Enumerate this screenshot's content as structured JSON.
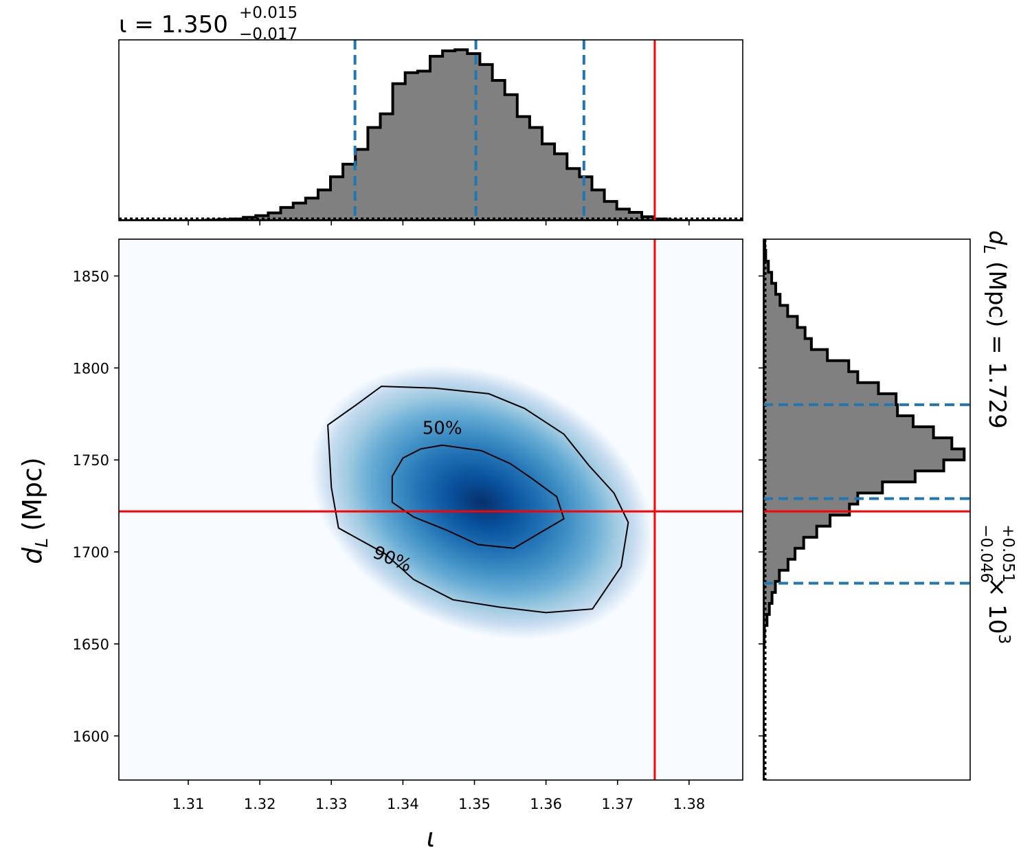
{
  "chart_data": [
    {
      "type": "heatmap",
      "panel": "joint",
      "xlabel": "ι",
      "ylabel_var": "d",
      "ylabel_sub": "L",
      "ylabel_unit": "(Mpc)",
      "xlim": [
        1.3003,
        1.3875
      ],
      "ylim": [
        1576,
        1870
      ],
      "xticks": [
        1.31,
        1.32,
        1.33,
        1.34,
        1.35,
        1.36,
        1.37,
        1.38
      ],
      "xtick_labels": [
        "1.31",
        "1.32",
        "1.33",
        "1.34",
        "1.35",
        "1.36",
        "1.37",
        "1.38"
      ],
      "yticks": [
        1600,
        1650,
        1700,
        1750,
        1800,
        1850
      ],
      "ytick_labels": [
        "1600",
        "1650",
        "1700",
        "1750",
        "1800",
        "1850"
      ],
      "colormap": "Blues",
      "density_peak": {
        "x": 1.351,
        "y": 1727
      },
      "contours": [
        {
          "label": "50%",
          "label_pos": {
            "x": 1.3455,
            "y": 1764
          },
          "points": [
            [
              1.3455,
              1758
            ],
            [
              1.351,
              1755
            ],
            [
              1.355,
              1748
            ],
            [
              1.358,
              1740
            ],
            [
              1.3615,
              1730
            ],
            [
              1.3625,
              1718
            ],
            [
              1.359,
              1710
            ],
            [
              1.3555,
              1702
            ],
            [
              1.3505,
              1704
            ],
            [
              1.346,
              1712
            ],
            [
              1.3415,
              1719
            ],
            [
              1.3385,
              1727
            ],
            [
              1.3385,
              1741
            ],
            [
              1.34,
              1751
            ],
            [
              1.3425,
              1756
            ]
          ]
        },
        {
          "label": "90%",
          "label_pos": {
            "x": 1.3385,
            "y": 1693
          },
          "points": [
            [
              1.337,
              1790
            ],
            [
              1.3445,
              1789
            ],
            [
              1.352,
              1786
            ],
            [
              1.357,
              1778
            ],
            [
              1.3625,
              1764
            ],
            [
              1.366,
              1747
            ],
            [
              1.3695,
              1732
            ],
            [
              1.3715,
              1716
            ],
            [
              1.3705,
              1692
            ],
            [
              1.3665,
              1669
            ],
            [
              1.36,
              1667
            ],
            [
              1.3535,
              1670
            ],
            [
              1.347,
              1674
            ],
            [
              1.3415,
              1685
            ],
            [
              1.3375,
              1699
            ],
            [
              1.331,
              1713
            ],
            [
              1.33,
              1735
            ],
            [
              1.3295,
              1769
            ],
            [
              1.3335,
              1780
            ]
          ]
        }
      ],
      "truth": {
        "x": 1.3752,
        "y": 1722
      },
      "truth_color": "#ff0000"
    },
    {
      "type": "bar",
      "panel": "marginal-x",
      "title_value": "ι = 1.350",
      "title_upper": "+0.015",
      "title_lower": "−0.017",
      "bin_start": 1.3003,
      "bin_width": 0.00174,
      "values": [
        0,
        0,
        0,
        0,
        0,
        0,
        0,
        0.1,
        0.2,
        0.3,
        0.6,
        0.9,
        1.4,
        2.4,
        3.2,
        4.1,
        5.6,
        8.0,
        10.3,
        13.0,
        17.0,
        19.5,
        25.0,
        27.0,
        27.3,
        30.0,
        31.0,
        31.2,
        30.5,
        28.5,
        25.6,
        23.0,
        19.0,
        17.0,
        14.0,
        12.2,
        9.5,
        8.0,
        5.6,
        3.5,
        2.1,
        1.5,
        0.7,
        0.3,
        0.1,
        0,
        0,
        0,
        0,
        0
      ],
      "ylim": [
        0,
        32
      ],
      "quantiles": [
        1.3333,
        1.3502,
        1.3653
      ],
      "quantile_color": "#1f77b4",
      "truth": 1.3752,
      "truth_color": "#ff0000",
      "fill_color": "#808080"
    },
    {
      "type": "bar",
      "panel": "marginal-y",
      "orientation": "horizontal",
      "side_title_var": "d",
      "side_title_sub": "L",
      "side_title_main": " (Mpc) = 1.729",
      "side_title_upper": "+0.051",
      "side_title_lower": "−0.046",
      "side_title_tail": " × 10",
      "side_title_exp": "3",
      "bin_start": 1576,
      "bin_width": 6,
      "values": [
        0,
        0,
        0,
        0,
        0,
        0,
        0,
        0,
        0,
        0,
        0,
        0,
        0.2,
        0.3,
        1.1,
        1.8,
        2.6,
        3.6,
        4.8,
        7.4,
        9.5,
        12.1,
        16.0,
        20.0,
        25.8,
        28.3,
        35.7,
        45.5,
        54.1,
        60.2,
        56.5,
        51.0,
        44.9,
        40.2,
        39.8,
        34.5,
        28.3,
        25.6,
        19.2,
        14.4,
        12.5,
        10.2,
        7.3,
        5.0,
        3.7,
        2.5,
        1.5,
        0.7,
        0.4,
        0
      ],
      "xlim": [
        0,
        62
      ],
      "quantiles": [
        1683,
        1729,
        1780
      ],
      "quantile_color": "#1f77b4",
      "truth": 1722,
      "truth_color": "#ff0000",
      "fill_color": "#808080"
    }
  ]
}
